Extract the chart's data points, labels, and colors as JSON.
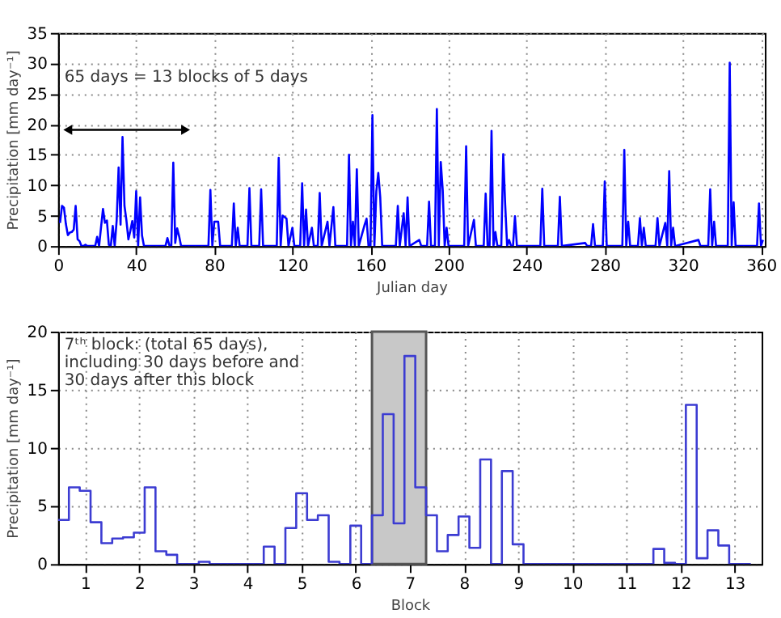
{
  "chart_data": [
    {
      "type": "line",
      "xlabel": "Julian day",
      "ylabel": "Precipitation [mm day⁻¹]",
      "color": "#0000ff",
      "x": [
        1,
        2,
        3,
        4,
        5,
        6,
        7,
        8,
        9,
        10,
        11,
        12,
        13,
        14,
        15,
        16,
        17,
        18,
        19,
        20,
        21,
        22,
        23,
        24,
        25,
        26,
        27,
        28,
        29,
        30,
        31,
        32,
        33,
        34,
        35,
        36,
        37,
        38,
        39,
        40,
        41,
        42,
        43,
        44,
        45,
        46,
        47,
        48,
        49,
        50,
        51,
        52,
        53,
        54,
        55,
        56,
        57,
        58,
        59,
        60,
        61,
        62,
        63,
        64,
        65,
        77,
        78,
        79,
        80,
        82,
        83,
        89,
        90,
        91,
        92,
        93,
        97,
        98,
        99,
        103,
        104,
        105,
        112,
        113,
        114,
        115,
        117,
        118,
        120,
        121,
        124,
        125,
        126,
        127,
        128,
        130,
        131,
        133,
        134,
        135,
        138,
        139,
        141,
        142,
        148,
        149,
        150,
        151,
        152,
        153,
        154,
        157,
        158,
        159,
        160,
        161,
        162,
        163,
        164,
        165,
        166,
        173,
        174,
        175,
        177,
        178,
        179,
        180,
        185,
        186,
        189,
        190,
        191,
        193,
        194,
        195,
        196,
        197,
        198,
        199,
        200,
        208,
        209,
        210,
        213,
        214,
        218,
        219,
        220,
        221,
        222,
        223,
        224,
        225,
        227,
        228,
        229,
        230,
        231,
        232,
        233,
        234,
        235,
        247,
        248,
        249,
        256,
        257,
        258,
        270,
        271,
        273,
        274,
        275,
        279,
        280,
        281,
        289,
        290,
        291,
        292,
        293,
        297,
        298,
        299,
        300,
        301,
        306,
        307,
        308,
        311,
        312,
        313,
        314,
        315,
        316,
        328,
        329,
        333,
        334,
        335,
        336,
        337,
        343,
        344,
        345,
        346,
        347,
        358,
        359,
        360,
        361
      ],
      "values": [
        3.8,
        6.6,
        6.3,
        3.6,
        1.8,
        2.2,
        2.3,
        2.7,
        6.6,
        1.1,
        0.8,
        0,
        0,
        0.2,
        0,
        0,
        0,
        0,
        0,
        1.5,
        0,
        3.1,
        6.1,
        3.8,
        4.2,
        0.2,
        0,
        3.3,
        0,
        4.2,
        12.9,
        3.5,
        17.9,
        6.6,
        4.2,
        1.1,
        2.5,
        4.1,
        1.4,
        9.0,
        0,
        8.0,
        1.7,
        0,
        0,
        0,
        0,
        0,
        0,
        0,
        0,
        0,
        0,
        0,
        0,
        1.3,
        0.1,
        0,
        13.7,
        0.5,
        2.9,
        1.6,
        0,
        0,
        0,
        0,
        9.2,
        0,
        4,
        4,
        0,
        0,
        7,
        0,
        3,
        0,
        0,
        9.5,
        0,
        0,
        9.3,
        0,
        0,
        14.5,
        0,
        5,
        4.5,
        0,
        3,
        0,
        0,
        10.3,
        0,
        6,
        0,
        3,
        0,
        0,
        8.7,
        0,
        4,
        0,
        6.4,
        0,
        0,
        15,
        0,
        4,
        0,
        12.6,
        0,
        3.5,
        4.5,
        0,
        0,
        21.5,
        0,
        9,
        12,
        8,
        0,
        0,
        6.6,
        0,
        5.4,
        0,
        8,
        0,
        1,
        0,
        0,
        7.3,
        0,
        0,
        22.5,
        0,
        13.8,
        9.2,
        0,
        3,
        0,
        0,
        16.4,
        0,
        4.3,
        0,
        0,
        8.6,
        0,
        0,
        18.9,
        0,
        2.3,
        0,
        0,
        15.1,
        6.8,
        0,
        1,
        0,
        0,
        4.9,
        0,
        0,
        9.4,
        0,
        0,
        8.1,
        0,
        0.5,
        0,
        0,
        3.6,
        0,
        0,
        10.6,
        0,
        0,
        15.8,
        0,
        4,
        0,
        0,
        4.6,
        0,
        3,
        0,
        0,
        4.6,
        0,
        3.8,
        0,
        12.3,
        0,
        3,
        0,
        1,
        0,
        0,
        9.3,
        0,
        4,
        0,
        0,
        30.1,
        0,
        7.2,
        0,
        0,
        7,
        0,
        1
      ],
      "xlim": [
        0,
        362
      ],
      "xticks": [
        0,
        40,
        80,
        120,
        160,
        200,
        240,
        280,
        320,
        360
      ],
      "ylim": [
        0,
        35
      ],
      "yticks": [
        0,
        5,
        10,
        15,
        20,
        25,
        30,
        35
      ],
      "grid": true,
      "annotations": [
        "65 days = 13 blocks of 5 days"
      ]
    },
    {
      "type": "step",
      "xlabel": "Block",
      "ylabel": "Precipitation [mm day⁻¹]",
      "color": "#3c3cd2",
      "x": [
        0.5,
        0.7,
        0.9,
        1.1,
        1.3,
        1.5,
        1.7,
        1.9,
        2.1,
        2.3,
        2.5,
        2.7,
        2.9,
        3.1,
        3.3,
        3.5,
        3.7,
        3.9,
        4.1,
        4.3,
        4.5,
        4.7,
        4.9,
        5.1,
        5.3,
        5.5,
        5.7,
        5.9,
        6.1,
        6.3,
        6.5,
        6.7,
        6.9,
        7.1,
        7.3,
        7.5,
        7.7,
        7.9,
        8.1,
        8.3,
        8.5,
        8.7,
        8.9,
        9.1,
        9.3,
        9.5,
        9.7,
        9.9,
        10.1,
        10.3,
        10.5,
        10.7,
        10.9,
        11.1,
        11.3,
        11.5,
        11.7,
        11.9,
        12.1,
        12.3,
        12.5,
        12.7,
        12.9,
        13.1,
        13.3
      ],
      "values": [
        3.8,
        6.6,
        6.3,
        3.6,
        1.8,
        2.2,
        2.3,
        2.7,
        6.6,
        1.1,
        0.8,
        0,
        0,
        0.2,
        0,
        0,
        0,
        0,
        0,
        1.5,
        0,
        3.1,
        6.1,
        3.8,
        4.2,
        0.2,
        0,
        3.3,
        0,
        4.2,
        12.9,
        3.5,
        17.9,
        6.6,
        4.2,
        1.1,
        2.5,
        4.1,
        1.4,
        9.0,
        0,
        8.0,
        1.7,
        0,
        0,
        0,
        0,
        0,
        0,
        0,
        0,
        0,
        0,
        0,
        0,
        1.3,
        0.1,
        0,
        13.7,
        0.5,
        2.9,
        1.6,
        0,
        0,
        0
      ],
      "xlim": [
        0.5,
        13.5
      ],
      "xticks": [
        1,
        2,
        3,
        4,
        5,
        6,
        7,
        8,
        9,
        10,
        11,
        12,
        13
      ],
      "ylim": [
        0,
        20
      ],
      "yticks": [
        0,
        5,
        10,
        15,
        20
      ],
      "grid": true,
      "bands": [
        {
          "axis": "x",
          "from": 6.3,
          "to": 7.3,
          "color": "#c8c8c8"
        }
      ],
      "annotations": [
        "7ᵗʰ block: (total 65 days),\nincluding 30 days before and\n30 days after this block"
      ]
    }
  ]
}
